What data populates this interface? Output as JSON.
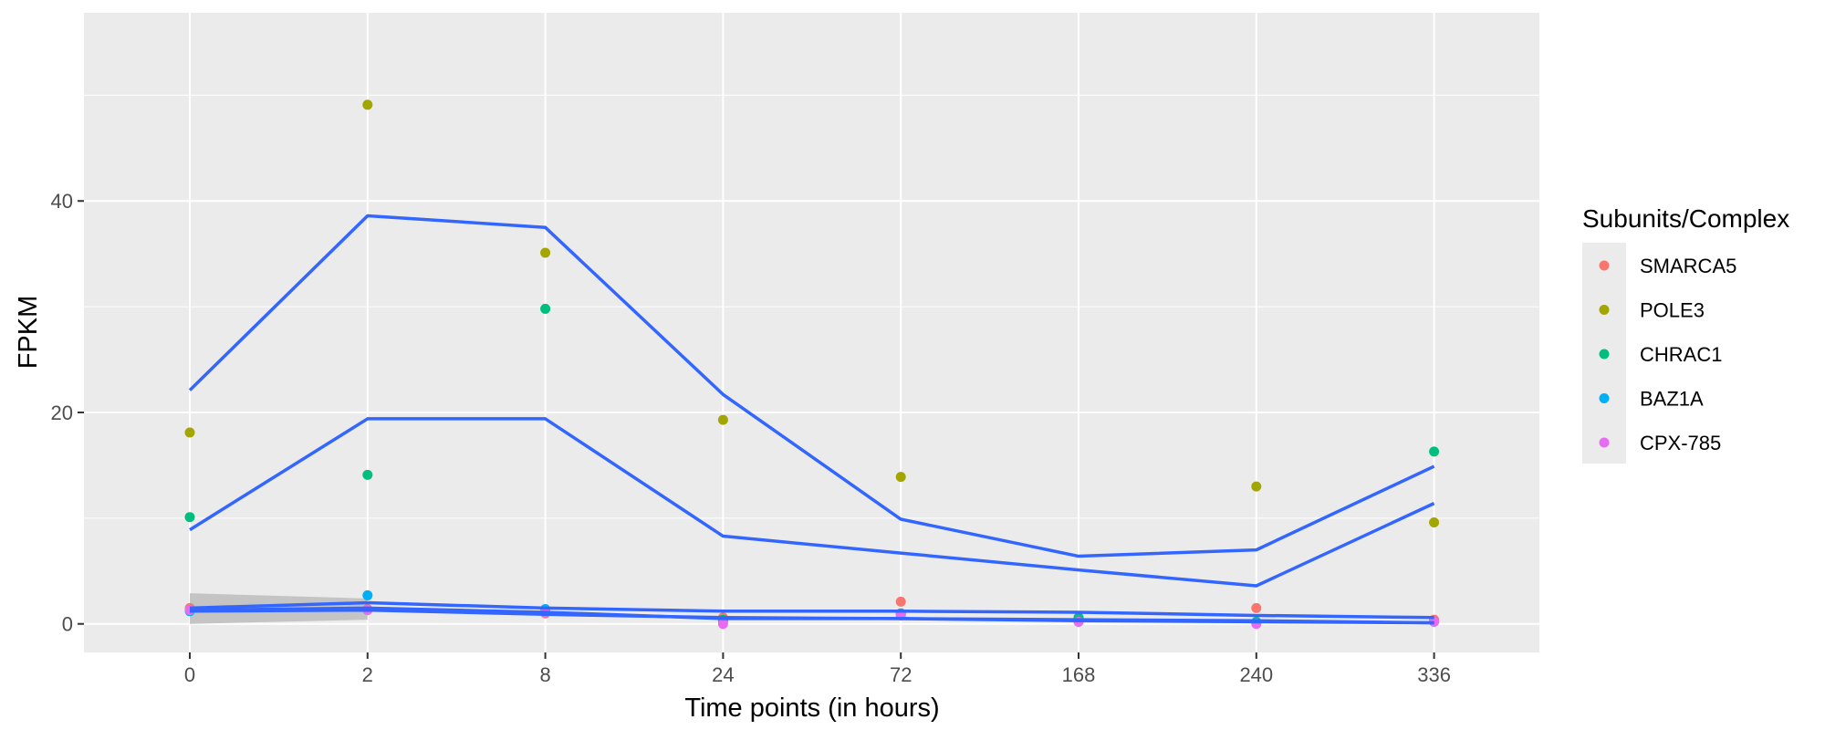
{
  "chart_data": {
    "type": "scatter",
    "title": "",
    "xlabel": "Time points (in hours)",
    "ylabel": "FPKM",
    "x_scale": "categorical",
    "categories": [
      "0",
      "2",
      "8",
      "24",
      "72",
      "168",
      "240",
      "336"
    ],
    "ylim": [
      -2.7,
      57.8
    ],
    "yticks": [
      0,
      20,
      40
    ],
    "grid": true,
    "legend": {
      "title": "Subunits/Complex",
      "position": "right"
    },
    "series": [
      {
        "name": "SMARCA5",
        "color": "#F8766D",
        "values": [
          1.5,
          1.4,
          1.0,
          0.6,
          2.1,
          0.5,
          1.5,
          0.4
        ]
      },
      {
        "name": "POLE3",
        "color": "#A3A500",
        "values": [
          18.1,
          49.1,
          35.1,
          19.3,
          13.9,
          0.6,
          13.0,
          9.6
        ]
      },
      {
        "name": "CHRAC1",
        "color": "#00BF7D",
        "values": [
          10.1,
          14.1,
          29.8,
          0.4,
          1.0,
          0.6,
          0.2,
          16.3
        ]
      },
      {
        "name": "BAZ1A",
        "color": "#00B0F6",
        "values": [
          1.2,
          2.7,
          1.4,
          0.3,
          0.9,
          0.2,
          0.1,
          0.2
        ]
      },
      {
        "name": "CPX-785",
        "color": "#E76BF3",
        "values": [
          1.3,
          1.3,
          1.1,
          0.0,
          0.8,
          0.2,
          0.0,
          0.2
        ]
      }
    ],
    "fit_lines": {
      "color": "#3366FF",
      "lines": [
        [
          22.1,
          38.6,
          37.5,
          21.7,
          9.9,
          6.4,
          7.0,
          14.9
        ],
        [
          8.9,
          19.4,
          19.4,
          8.3,
          6.7,
          5.1,
          3.6,
          11.4
        ],
        [
          1.5,
          2.0,
          1.5,
          1.2,
          1.2,
          1.1,
          0.8,
          0.6
        ],
        [
          1.3,
          1.5,
          1.1,
          0.5,
          0.5,
          0.3,
          0.2,
          0.1
        ],
        [
          1.2,
          1.3,
          0.9,
          0.6,
          0.5,
          0.4,
          0.3,
          0.1
        ]
      ],
      "ribbon_color": "#bdbdbd",
      "ribbon": {
        "x_index": [
          0,
          1
        ],
        "lower": [
          0.0,
          0.4
        ],
        "upper": [
          2.9,
          2.4
        ]
      }
    }
  }
}
